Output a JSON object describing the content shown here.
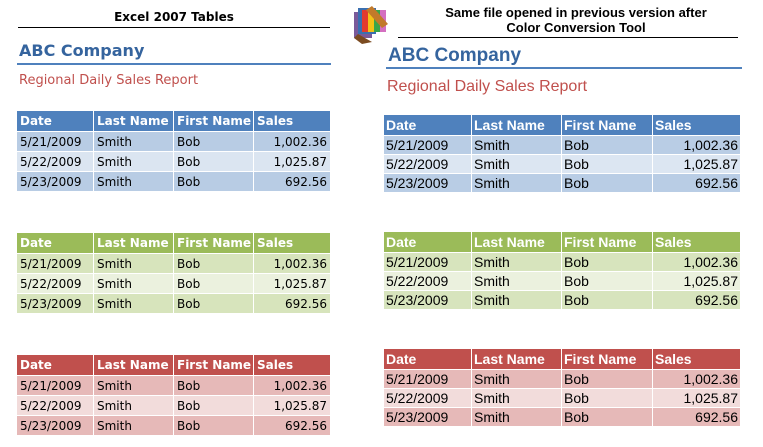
{
  "left_panel": {
    "caption": "Excel 2007 Tables",
    "company": "ABC Company",
    "report_title": "Regional Daily Sales Report"
  },
  "right_panel": {
    "caption_line1": "Same file opened in previous version after",
    "caption_line2": "Color Conversion Tool",
    "company": "ABC Company",
    "report_title": "Regional Daily Sales Report",
    "icon": "paint-palette-icon"
  },
  "columns": [
    "Date",
    "Last Name",
    "First Name",
    "Sales"
  ],
  "rows": [
    [
      "5/21/2009",
      "Smith",
      "Bob",
      "1,002.36"
    ],
    [
      "5/22/2009",
      "Smith",
      "Bob",
      "1,025.87"
    ],
    [
      "5/23/2009",
      "Smith",
      "Bob",
      "692.56"
    ]
  ],
  "themes": {
    "blue": {
      "left": {
        "header": "#4f81bd",
        "band": "#b8cce4",
        "alt": "#dbe5f1"
      },
      "right": {
        "header": "#4f81bd",
        "band": "#b9cde5",
        "alt": "#dce6f2"
      }
    },
    "green": {
      "left": {
        "header": "#9bbb59",
        "band": "#d7e4bc",
        "alt": "#ebf1de"
      },
      "right": {
        "header": "#9bbb59",
        "band": "#d7e4bd",
        "alt": "#ebf1de"
      }
    },
    "red": {
      "left": {
        "header": "#c0504d",
        "band": "#e6b9b8",
        "alt": "#f2dcdb"
      },
      "right": {
        "header": "#c0504d",
        "band": "#e6b9b8",
        "alt": "#f2dcdb"
      }
    }
  }
}
